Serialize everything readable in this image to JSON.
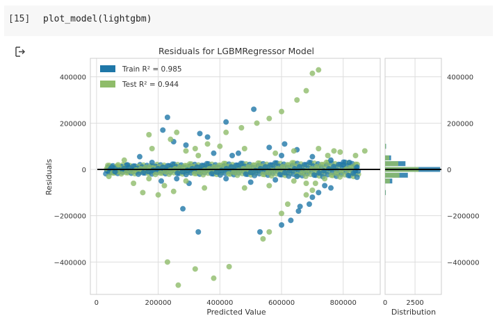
{
  "cell": {
    "prompt": "[15]",
    "code": "plot_model(lightgbm)"
  },
  "output_icon": "output-arrow-icon",
  "chart_data": {
    "type": "scatter",
    "title": "Residuals for LGBMRegressor Model",
    "xlabel": "Predicted Value",
    "ylabel": "Residuals",
    "hist_xlabel": "Distribution",
    "xlim": [
      -20000,
      920000
    ],
    "ylim": [
      -540000,
      480000
    ],
    "x_ticks": [
      0,
      200000,
      400000,
      600000,
      800000
    ],
    "x_tick_labels": [
      "0",
      "200000",
      "400000",
      "600000",
      "800000"
    ],
    "y_ticks": [
      -400000,
      -200000,
      0,
      200000,
      400000
    ],
    "y_tick_labels": [
      "−400000",
      "−200000",
      "0",
      "200000",
      "400000"
    ],
    "hist_xlim": [
      0,
      4700
    ],
    "hist_ticks": [
      0,
      2500
    ],
    "hist_tick_labels": [
      "0",
      "2500"
    ],
    "grid": true,
    "legend_placement": "top-left",
    "colors": {
      "train": "#1f77a8",
      "test": "#8fbc6a",
      "zero_line": "#000000",
      "grid": "#dddddd"
    },
    "series": [
      {
        "name": "Train R² = 0.985",
        "color": "#1f77a8",
        "points": [
          [
            230000,
            225000
          ],
          [
            215000,
            170000
          ],
          [
            250000,
            120000
          ],
          [
            290000,
            105000
          ],
          [
            335000,
            155000
          ],
          [
            420000,
            205000
          ],
          [
            510000,
            260000
          ],
          [
            560000,
            95000
          ],
          [
            610000,
            110000
          ],
          [
            650000,
            85000
          ],
          [
            700000,
            55000
          ],
          [
            760000,
            40000
          ],
          [
            820000,
            30000
          ],
          [
            845000,
            10000
          ],
          [
            840000,
            -5000
          ],
          [
            760000,
            -80000
          ],
          [
            740000,
            -70000
          ],
          [
            720000,
            -100000
          ],
          [
            700000,
            -120000
          ],
          [
            690000,
            -150000
          ],
          [
            655000,
            -180000
          ],
          [
            660000,
            -160000
          ],
          [
            630000,
            -220000
          ],
          [
            600000,
            -240000
          ],
          [
            530000,
            -270000
          ],
          [
            280000,
            -170000
          ],
          [
            330000,
            -270000
          ],
          [
            260000,
            -40000
          ],
          [
            300000,
            -60000
          ],
          [
            420000,
            -40000
          ],
          [
            500000,
            -55000
          ],
          [
            580000,
            -45000
          ],
          [
            380000,
            70000
          ],
          [
            460000,
            70000
          ],
          [
            180000,
            30000
          ],
          [
            140000,
            55000
          ],
          [
            100000,
            20000
          ],
          [
            60000,
            -10000
          ],
          [
            50000,
            10000
          ],
          [
            360000,
            140000
          ],
          [
            210000,
            -50000
          ],
          [
            440000,
            60000
          ],
          [
            600000,
            60000
          ],
          [
            650000,
            -30000
          ],
          [
            800000,
            20000
          ]
        ]
      },
      {
        "name": "Test R² = 0.944",
        "color": "#8fbc6a",
        "points": [
          [
            720000,
            430000
          ],
          [
            700000,
            415000
          ],
          [
            680000,
            340000
          ],
          [
            650000,
            300000
          ],
          [
            600000,
            250000
          ],
          [
            560000,
            220000
          ],
          [
            520000,
            200000
          ],
          [
            470000,
            180000
          ],
          [
            420000,
            160000
          ],
          [
            360000,
            110000
          ],
          [
            320000,
            90000
          ],
          [
            290000,
            80000
          ],
          [
            260000,
            160000
          ],
          [
            240000,
            130000
          ],
          [
            170000,
            150000
          ],
          [
            230000,
            -400000
          ],
          [
            265000,
            -500000
          ],
          [
            320000,
            -430000
          ],
          [
            380000,
            -470000
          ],
          [
            430000,
            -420000
          ],
          [
            540000,
            -300000
          ],
          [
            560000,
            -270000
          ],
          [
            600000,
            -190000
          ],
          [
            620000,
            -150000
          ],
          [
            680000,
            -110000
          ],
          [
            700000,
            -90000
          ],
          [
            770000,
            80000
          ],
          [
            790000,
            75000
          ],
          [
            870000,
            80000
          ],
          [
            840000,
            60000
          ],
          [
            150000,
            -100000
          ],
          [
            200000,
            -110000
          ],
          [
            120000,
            -60000
          ],
          [
            90000,
            40000
          ],
          [
            180000,
            90000
          ],
          [
            330000,
            60000
          ],
          [
            400000,
            100000
          ],
          [
            480000,
            90000
          ],
          [
            580000,
            70000
          ],
          [
            640000,
            80000
          ],
          [
            720000,
            90000
          ],
          [
            750000,
            60000
          ],
          [
            710000,
            -60000
          ],
          [
            740000,
            -40000
          ],
          [
            680000,
            -60000
          ],
          [
            640000,
            -50000
          ],
          [
            560000,
            -70000
          ],
          [
            480000,
            -80000
          ],
          [
            350000,
            -80000
          ],
          [
            290000,
            -50000
          ],
          [
            220000,
            -70000
          ],
          [
            170000,
            -40000
          ],
          [
            40000,
            -30000
          ],
          [
            70000,
            20000
          ],
          [
            250000,
            -95000
          ]
        ]
      }
    ],
    "histogram": {
      "train_counts": [
        [
          -100000,
          60
        ],
        [
          -50000,
          600
        ],
        [
          -25000,
          1900
        ],
        [
          0,
          4600
        ],
        [
          25000,
          1700
        ],
        [
          50000,
          500
        ],
        [
          100000,
          80
        ]
      ],
      "test_counts": [
        [
          -100000,
          40
        ],
        [
          -50000,
          400
        ],
        [
          -25000,
          1200
        ],
        [
          0,
          2800
        ],
        [
          25000,
          1100
        ],
        [
          50000,
          350
        ],
        [
          100000,
          60
        ]
      ]
    }
  }
}
